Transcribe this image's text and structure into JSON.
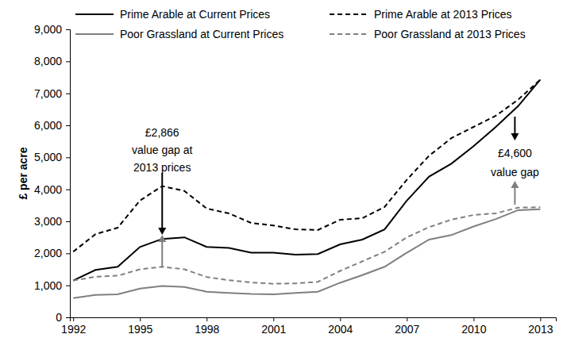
{
  "chart_data": {
    "type": "line",
    "y_label": "£ per acre",
    "x": [
      1992,
      1993,
      1994,
      1995,
      1996,
      1997,
      1998,
      1999,
      2000,
      2001,
      2002,
      2003,
      2004,
      2005,
      2006,
      2007,
      2008,
      2009,
      2010,
      2011,
      2012,
      2013
    ],
    "xlim": [
      1991.85,
      2013.7
    ],
    "xticks": [
      1992,
      1995,
      1998,
      2001,
      2004,
      2007,
      2010,
      2013
    ],
    "ylim": [
      0,
      9000
    ],
    "yticks": [
      0,
      {
        "value": 1000,
        "label": "1,000"
      },
      {
        "value": 2000,
        "label": "2,000"
      },
      {
        "value": 3000,
        "label": "3,000"
      },
      {
        "value": 4000,
        "label": "4,000"
      },
      {
        "value": 5000,
        "label": "5,000"
      },
      {
        "value": 6000,
        "label": "6,000"
      },
      {
        "value": 7000,
        "label": "7,000"
      },
      {
        "value": 8000,
        "label": "8,000"
      },
      {
        "value": 9000,
        "label": "9,000"
      }
    ],
    "grid": false,
    "legend": "top",
    "series": [
      {
        "name": "Prime Arable at Current Prices",
        "color": "#000000",
        "line_style": "solid",
        "values": [
          1150,
          1480,
          1580,
          2200,
          2450,
          2500,
          2200,
          2170,
          2020,
          2020,
          1960,
          1980,
          2280,
          2430,
          2750,
          3650,
          4400,
          4800,
          5350,
          5950,
          6600,
          7430
        ]
      },
      {
        "name": "Prime Arable at 2013 Prices",
        "color": "#000000",
        "line_style": "dashed",
        "values": [
          2050,
          2600,
          2800,
          3650,
          4100,
          3950,
          3400,
          3250,
          2950,
          2870,
          2750,
          2730,
          3050,
          3100,
          3450,
          4300,
          5050,
          5600,
          5950,
          6300,
          6800,
          7430
        ]
      },
      {
        "name": "Poor Grassland at Current Prices",
        "color": "#7f7f7f",
        "line_style": "solid",
        "values": [
          600,
          700,
          720,
          900,
          980,
          950,
          800,
          760,
          730,
          720,
          760,
          800,
          1080,
          1320,
          1580,
          2020,
          2430,
          2570,
          2840,
          3070,
          3350,
          3380
        ]
      },
      {
        "name": "Poor Grassland at 2013 Prices",
        "color": "#7f7f7f",
        "line_style": "dashed",
        "values": [
          1150,
          1270,
          1300,
          1500,
          1580,
          1500,
          1260,
          1160,
          1090,
          1050,
          1060,
          1110,
          1450,
          1750,
          2050,
          2500,
          2820,
          3050,
          3200,
          3250,
          3430,
          3440
        ]
      }
    ],
    "annotations": [
      {
        "lines": [
          "£2,866",
          "value gap at",
          "2013 prices"
        ]
      },
      {
        "lines": [
          "£4,600",
          "value gap"
        ]
      }
    ]
  }
}
